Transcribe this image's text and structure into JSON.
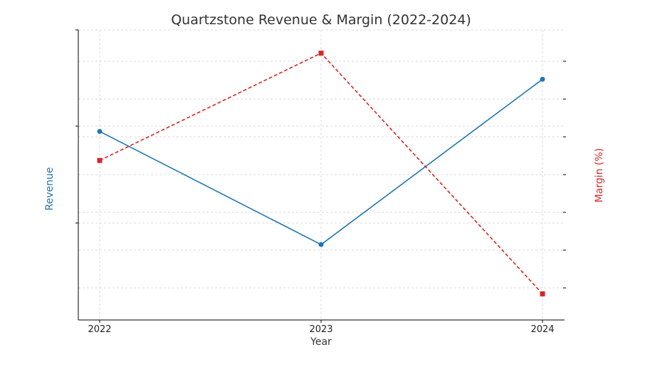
{
  "chart_data": {
    "type": "line",
    "title": "Quartzstone Revenue & Margin (2022-2024)",
    "xlabel": "Year",
    "ylabel_left": "Revenue",
    "ylabel_right": "Margin (%)",
    "categories": [
      "2022",
      "2023",
      "2024"
    ],
    "grid": true,
    "legend": "none",
    "ylim_left": [
      0,
      100
    ],
    "ylim_right": [
      0,
      100
    ],
    "series": [
      {
        "axis": "left",
        "color": "#1f77b4",
        "line_style": "solid",
        "marker": "circle",
        "values": [
          65,
          26,
          83
        ]
      },
      {
        "axis": "right",
        "color": "#d62728",
        "line_style": "dashed",
        "marker": "square",
        "values": [
          55,
          92,
          9
        ]
      }
    ]
  },
  "colors": {
    "revenue": "#1f77b4",
    "margin": "#d62728",
    "text": "#333333"
  }
}
